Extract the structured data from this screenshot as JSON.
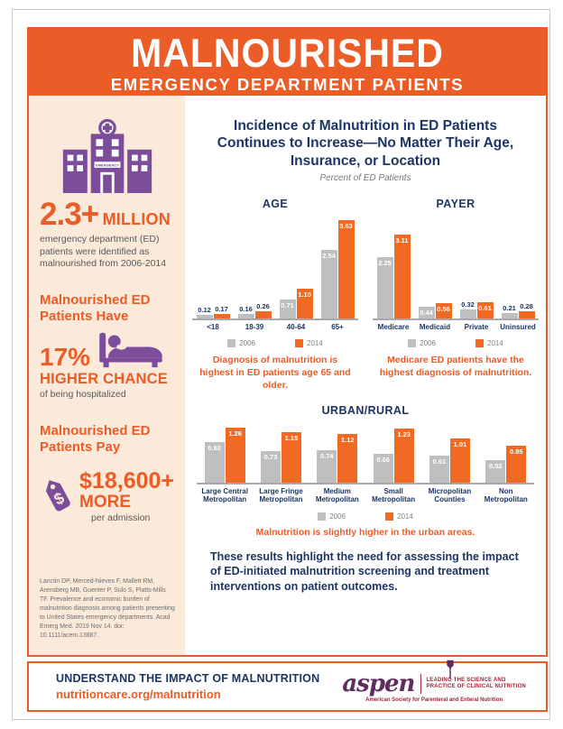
{
  "header": {
    "title": "MALNOURISHED",
    "subtitle": "EMERGENCY DEPARTMENT PATIENTS"
  },
  "sidebar": {
    "stat_million": {
      "big": "2.3+",
      "suffix": "MILLION",
      "body": "emergency department (ED) patients were identified as malnourished from 2006-2014"
    },
    "stat_hospitalized": {
      "heading": "Malnourished ED Patients Have",
      "big": "17%",
      "sub": "HIGHER CHANCE",
      "body": "of being hospitalized"
    },
    "stat_pay": {
      "heading": "Malnourished ED Patients Pay",
      "big": "$18,600+",
      "sub": "MORE",
      "body": "per admission"
    },
    "hospital_banner": "EMERGENCY",
    "citation": "Lanctin DP, Merced-Nieves F, Mallett RM, Arensberg MB, Guenter P, Sulo S, Platts-Mills TF. Prevalence and economic burden of malnutrition diagnosis among patients presenting to United States emergency departments. Acad Emerg Med. 2019 Nov 14. doi: 10.1111/acem.13887."
  },
  "main": {
    "title": "Incidence of Malnutrition in ED Patients Continues to Increase—No Matter Their Age, Insurance, or Location",
    "subtitle": "Percent of ED Patients",
    "conclusion": "These results highlight the need for assessing the impact of ED-initiated malnutrition screening and treatment interventions on patient outcomes."
  },
  "chart_data": [
    {
      "key": "age",
      "type": "bar",
      "title": "AGE",
      "categories": [
        "<18",
        "18-39",
        "40-64",
        "65+"
      ],
      "series": [
        {
          "name": "2006",
          "values": [
            0.12,
            0.16,
            0.71,
            2.54
          ]
        },
        {
          "name": "2014",
          "values": [
            0.17,
            0.26,
            1.1,
            3.63
          ]
        }
      ],
      "legend": [
        "2006",
        "2014"
      ],
      "ylim": [
        0,
        3.63
      ],
      "grid": false,
      "legend_position": "bottom",
      "caption": "Diagnosis of malnutrition is highest in ED patients age 65 and older."
    },
    {
      "key": "payer",
      "type": "bar",
      "title": "PAYER",
      "categories": [
        "Medicare",
        "Medicaid",
        "Private",
        "Uninsured"
      ],
      "series": [
        {
          "name": "2006",
          "values": [
            2.25,
            0.44,
            0.32,
            0.21
          ]
        },
        {
          "name": "2014",
          "values": [
            3.11,
            0.56,
            0.61,
            0.28
          ]
        }
      ],
      "legend": [
        "2006",
        "2014"
      ],
      "ylim": [
        0,
        3.63
      ],
      "grid": false,
      "legend_position": "bottom",
      "caption": "Medicare ED patients have the highest diagnosis of malnutrition."
    },
    {
      "key": "urban",
      "type": "bar",
      "title": "URBAN/RURAL",
      "categories": [
        "Large Central Metropolitan",
        "Large Fringe Metropolitan",
        "Medium Metropolitan",
        "Small Metropolitan",
        "Micropolitan Counties",
        "Non Metropolitan"
      ],
      "series": [
        {
          "name": "2006",
          "values": [
            0.92,
            0.73,
            0.74,
            0.66,
            0.61,
            0.52
          ]
        },
        {
          "name": "2014",
          "values": [
            1.26,
            1.15,
            1.12,
            1.23,
            1.01,
            0.85
          ]
        }
      ],
      "legend": [
        "2006",
        "2014"
      ],
      "ylim": [
        0,
        1.3
      ],
      "grid": false,
      "legend_position": "bottom",
      "caption": "Malnutrition is slightly higher in the urban areas."
    }
  ],
  "footer": {
    "line1": "UNDERSTAND THE IMPACT OF MALNUTRITION",
    "line2": "nutritioncare.org/malnutrition",
    "aspen": {
      "wordmark": "aspen",
      "tagline1": "LEADING THE SCIENCE AND",
      "tagline2": "PRACTICE OF CLINICAL NUTRITION",
      "org": "American Society for Parenteral and Enteral Nutrition"
    }
  },
  "colors": {
    "accent_orange": "#EB5C26",
    "bar_2006": "#BDBFC1",
    "bar_2014": "#F16A24",
    "navy": "#1C3564",
    "purple": "#7B4D9B",
    "peach": "#FBE9D9",
    "axis_gray": "#A7A9AC",
    "text_gray": "#58595B",
    "legend_gray": "#808184",
    "aspen_plum": "#5F2C5F",
    "aspen_red": "#A32134"
  }
}
